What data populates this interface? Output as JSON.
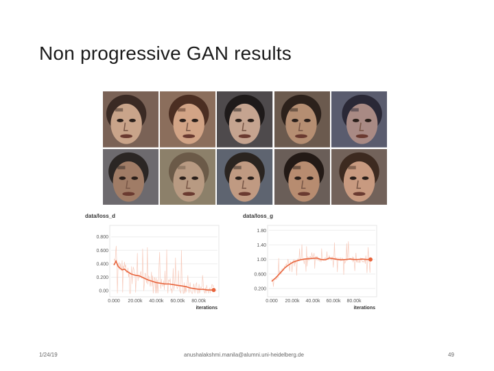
{
  "slide": {
    "title": "Non progressive GAN results",
    "footer_date": "1/24/19",
    "footer_author": "anushalakshmi.manila@alumni.uni-heidelberg.de",
    "page_number": "49"
  },
  "faces": [
    {
      "bg": "#7a6256",
      "skin": "#c9a48a",
      "hair": "#3a2a24"
    },
    {
      "bg": "#8b6e5c",
      "skin": "#d2a486",
      "hair": "#4b2e22"
    },
    {
      "bg": "#4e4a4c",
      "skin": "#c5a490",
      "hair": "#1e1a1a"
    },
    {
      "bg": "#6b5a4e",
      "skin": "#b58e72",
      "hair": "#2c211b"
    },
    {
      "bg": "#5a5c6e",
      "skin": "#a98a84",
      "hair": "#2a2836"
    },
    {
      "bg": "#6d6a6e",
      "skin": "#a07c66",
      "hair": "#2b2624"
    },
    {
      "bg": "#8c806a",
      "skin": "#b89a82",
      "hair": "#6b5a48"
    },
    {
      "bg": "#5e6470",
      "skin": "#c09a82",
      "hair": "#2a2420"
    },
    {
      "bg": "#6a5e58",
      "skin": "#b78c70",
      "hair": "#231a16"
    },
    {
      "bg": "#72625a",
      "skin": "#c89a80",
      "hair": "#3d2a20"
    }
  ],
  "chart_data": [
    {
      "type": "line",
      "title": "data/loss_d",
      "xlabel": "iterations",
      "x_ticks": [
        "0.000",
        "20.00k",
        "40.00k",
        "60.00k",
        "80.00k"
      ],
      "y_ticks": [
        "0.800",
        "0.600",
        "0.400",
        "0.200",
        "0.00"
      ],
      "xlim": [
        0,
        95000
      ],
      "ylim": [
        -0.05,
        0.95
      ],
      "color": "#e8643c",
      "noise_color": "#f6c4b4",
      "series": [
        {
          "x": [
            0,
            2000,
            4000,
            6000,
            8000,
            10000,
            12000,
            14000,
            16000,
            18000,
            20000,
            24000,
            28000,
            32000,
            36000,
            40000,
            44000,
            48000,
            52000,
            56000,
            60000,
            64000,
            68000,
            72000,
            76000,
            80000,
            84000,
            88000,
            92000,
            94000
          ],
          "y": [
            0.38,
            0.44,
            0.36,
            0.33,
            0.31,
            0.32,
            0.29,
            0.27,
            0.25,
            0.24,
            0.23,
            0.22,
            0.19,
            0.16,
            0.14,
            0.12,
            0.11,
            0.1,
            0.1,
            0.09,
            0.08,
            0.07,
            0.06,
            0.04,
            0.03,
            0.02,
            0.02,
            0.01,
            0.01,
            0.01
          ]
        }
      ]
    },
    {
      "type": "line",
      "title": "data/loss_g",
      "xlabel": "iterations",
      "x_ticks": [
        "0.000",
        "20.00k",
        "40.00k",
        "60.00k",
        "80.00k"
      ],
      "y_ticks": [
        "1.80",
        "1.40",
        "1.00",
        "0.600",
        "0.200"
      ],
      "xlim": [
        0,
        98000
      ],
      "ylim": [
        0.05,
        1.9
      ],
      "color": "#e8643c",
      "noise_color": "#f6c4b4",
      "series": [
        {
          "x": [
            0,
            2000,
            4000,
            6000,
            8000,
            10000,
            12000,
            15000,
            18000,
            21000,
            24000,
            28000,
            32000,
            36000,
            40000,
            44000,
            48000,
            52000,
            56000,
            60000,
            64000,
            68000,
            72000,
            76000,
            80000,
            84000,
            88000,
            92000,
            96000
          ],
          "y": [
            0.4,
            0.45,
            0.5,
            0.56,
            0.62,
            0.68,
            0.75,
            0.82,
            0.88,
            0.93,
            0.96,
            0.99,
            1.01,
            1.02,
            1.03,
            1.04,
            1.0,
            0.99,
            1.04,
            1.02,
            1.0,
            0.99,
            1.0,
            1.01,
            1.0,
            1.0,
            1.01,
            1.0,
            1.0
          ]
        }
      ]
    }
  ]
}
